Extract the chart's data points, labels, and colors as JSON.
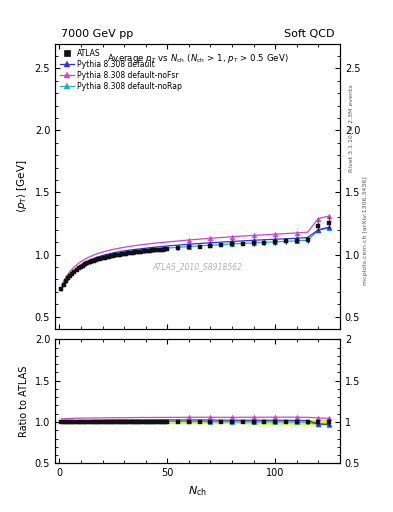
{
  "title_left": "7000 GeV pp",
  "title_right": "Soft QCD",
  "plot_title": "Average $p_T$ vs $N_{ch}$ ($N_{ch}$ > 1, $p_T$ > 0.5 GeV)",
  "xlabel": "$N_{\\rm ch}$",
  "ylabel_main": "$\\langle p_T \\rangle$ [GeV]",
  "ylabel_ratio": "Ratio to ATLAS",
  "right_label_top": "Rivet 3.1.10, ≥ 2.3M events",
  "right_label_bot": "mcplots.cern.ch [arXiv:1306.3436]",
  "watermark": "ATLAS_2010_S8918562",
  "ylim_main": [
    0.4,
    2.7
  ],
  "ylim_ratio": [
    0.5,
    2.0
  ],
  "yticks_main": [
    0.5,
    1.0,
    1.5,
    2.0,
    2.5
  ],
  "yticks_ratio": [
    0.5,
    1.0,
    1.5,
    2.0
  ],
  "xlim": [
    -2,
    130
  ],
  "xticks": [
    0,
    50,
    100
  ],
  "atlas_color": "#111111",
  "default_color": "#3333dd",
  "noFsr_color": "#cc44cc",
  "noRap_color": "#22aacc",
  "band_color": "#ccff00",
  "nch_all": [
    1,
    2,
    3,
    4,
    5,
    6,
    7,
    8,
    9,
    10,
    11,
    12,
    13,
    14,
    15,
    16,
    17,
    18,
    19,
    20,
    21,
    22,
    23,
    24,
    25,
    26,
    27,
    28,
    29,
    30,
    31,
    32,
    33,
    34,
    35,
    36,
    37,
    38,
    39,
    40,
    41,
    42,
    43,
    44,
    45,
    46,
    47,
    48,
    49,
    50,
    55,
    60,
    65,
    70,
    75,
    80,
    85,
    90,
    95,
    100,
    105,
    110,
    115,
    120,
    125
  ],
  "atlas_y": [
    0.72,
    0.755,
    0.783,
    0.808,
    0.829,
    0.847,
    0.863,
    0.877,
    0.89,
    0.901,
    0.911,
    0.92,
    0.929,
    0.937,
    0.944,
    0.95,
    0.956,
    0.962,
    0.967,
    0.972,
    0.976,
    0.98,
    0.984,
    0.988,
    0.991,
    0.994,
    0.997,
    1.0,
    1.003,
    1.006,
    1.008,
    1.011,
    1.013,
    1.015,
    1.017,
    1.019,
    1.021,
    1.023,
    1.025,
    1.027,
    1.029,
    1.031,
    1.033,
    1.034,
    1.036,
    1.037,
    1.039,
    1.04,
    1.042,
    1.043,
    1.05,
    1.057,
    1.063,
    1.07,
    1.076,
    1.082,
    1.087,
    1.092,
    1.096,
    1.1,
    1.105,
    1.11,
    1.117,
    1.23,
    1.255
  ],
  "atlas_yerr": [
    0.01,
    0.01,
    0.01,
    0.01,
    0.01,
    0.01,
    0.01,
    0.01,
    0.01,
    0.01,
    0.01,
    0.01,
    0.01,
    0.01,
    0.01,
    0.01,
    0.01,
    0.01,
    0.01,
    0.01,
    0.01,
    0.01,
    0.01,
    0.01,
    0.01,
    0.01,
    0.01,
    0.01,
    0.01,
    0.01,
    0.01,
    0.01,
    0.01,
    0.01,
    0.01,
    0.01,
    0.01,
    0.01,
    0.01,
    0.01,
    0.01,
    0.01,
    0.01,
    0.01,
    0.01,
    0.01,
    0.01,
    0.01,
    0.01,
    0.01,
    0.01,
    0.01,
    0.01,
    0.01,
    0.01,
    0.01,
    0.01,
    0.02,
    0.02,
    0.02,
    0.02,
    0.02,
    0.025,
    0.03,
    0.04
  ],
  "default_y": [
    0.72,
    0.757,
    0.789,
    0.815,
    0.837,
    0.857,
    0.874,
    0.889,
    0.903,
    0.915,
    0.926,
    0.936,
    0.945,
    0.953,
    0.961,
    0.968,
    0.975,
    0.981,
    0.986,
    0.992,
    0.997,
    1.001,
    1.005,
    1.009,
    1.013,
    1.017,
    1.02,
    1.023,
    1.026,
    1.029,
    1.032,
    1.034,
    1.037,
    1.039,
    1.041,
    1.043,
    1.045,
    1.047,
    1.049,
    1.051,
    1.053,
    1.055,
    1.057,
    1.059,
    1.061,
    1.062,
    1.064,
    1.066,
    1.067,
    1.069,
    1.076,
    1.083,
    1.089,
    1.095,
    1.1,
    1.105,
    1.11,
    1.115,
    1.119,
    1.123,
    1.127,
    1.131,
    1.137,
    1.2,
    1.22
  ],
  "noFsr_y": [
    0.748,
    0.784,
    0.815,
    0.841,
    0.864,
    0.884,
    0.901,
    0.917,
    0.931,
    0.943,
    0.954,
    0.964,
    0.973,
    0.981,
    0.989,
    0.996,
    1.003,
    1.009,
    1.014,
    1.02,
    1.025,
    1.029,
    1.034,
    1.038,
    1.042,
    1.045,
    1.049,
    1.052,
    1.055,
    1.058,
    1.061,
    1.064,
    1.067,
    1.069,
    1.072,
    1.074,
    1.076,
    1.079,
    1.081,
    1.083,
    1.085,
    1.087,
    1.089,
    1.091,
    1.093,
    1.094,
    1.096,
    1.098,
    1.099,
    1.101,
    1.109,
    1.117,
    1.124,
    1.131,
    1.137,
    1.143,
    1.149,
    1.154,
    1.159,
    1.164,
    1.169,
    1.174,
    1.18,
    1.29,
    1.31
  ],
  "noRap_y": [
    0.715,
    0.75,
    0.78,
    0.806,
    0.828,
    0.847,
    0.863,
    0.878,
    0.891,
    0.903,
    0.913,
    0.923,
    0.932,
    0.94,
    0.948,
    0.955,
    0.961,
    0.967,
    0.972,
    0.978,
    0.982,
    0.987,
    0.991,
    0.995,
    0.999,
    1.002,
    1.005,
    1.008,
    1.011,
    1.014,
    1.017,
    1.019,
    1.022,
    1.024,
    1.026,
    1.028,
    1.03,
    1.032,
    1.034,
    1.036,
    1.038,
    1.039,
    1.041,
    1.043,
    1.044,
    1.046,
    1.047,
    1.049,
    1.05,
    1.052,
    1.058,
    1.064,
    1.07,
    1.075,
    1.08,
    1.085,
    1.09,
    1.094,
    1.098,
    1.102,
    1.106,
    1.11,
    1.115,
    1.195,
    1.215
  ],
  "marker_nch": [
    60,
    70,
    80,
    90,
    100,
    110,
    120,
    125
  ]
}
